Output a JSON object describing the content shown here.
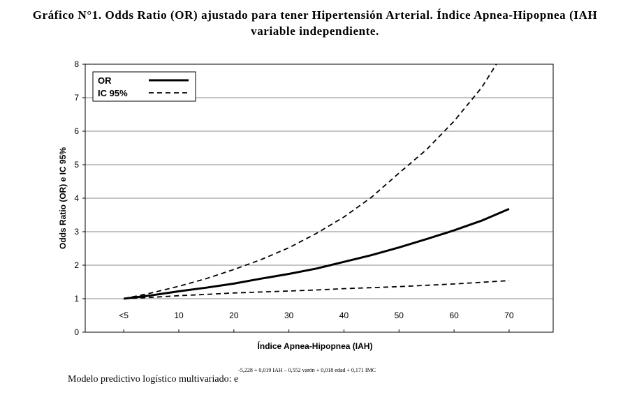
{
  "title": {
    "line1": "Gráfico N°1. Odds Ratio (OR) ajustado para tener Hipertensión Arterial.  Índice Apnea-Hipopnea (IAH",
    "line2": "variable independiente."
  },
  "footer": {
    "text": "Modelo predictivo logístico multivariado: e",
    "exponent": "-5,228 + 0,019 IAH – 0,552 varón + 0,018 edad + 0,171 IMC"
  },
  "chart_data": {
    "type": "line",
    "xlabel": "Índice Apnea-Hipopnea (IAH)",
    "ylabel": "Odds Ratio (OR) e IC 95%",
    "x_tick_labels": [
      "<5",
      "10",
      "20",
      "30",
      "40",
      "50",
      "60",
      "70"
    ],
    "x_tick_values": [
      0,
      10,
      20,
      30,
      40,
      50,
      60,
      70
    ],
    "xlim": [
      -7,
      78
    ],
    "ylim": [
      0,
      8
    ],
    "y_ticks": [
      0,
      1,
      2,
      3,
      4,
      5,
      6,
      7,
      8
    ],
    "grid": true,
    "legend_position": "top-left",
    "x": [
      0,
      5,
      10,
      15,
      20,
      25,
      30,
      35,
      40,
      45,
      50,
      55,
      60,
      65,
      70
    ],
    "series": [
      {
        "name": "OR",
        "style": "solid",
        "values": [
          1.0,
          1.1,
          1.22,
          1.33,
          1.45,
          1.6,
          1.74,
          1.9,
          2.1,
          2.3,
          2.53,
          2.78,
          3.04,
          3.33,
          3.68
        ]
      },
      {
        "name": "IC 95%",
        "style": "dashed",
        "values": [
          1.0,
          1.17,
          1.37,
          1.6,
          1.87,
          2.17,
          2.52,
          2.95,
          3.44,
          4.03,
          4.75,
          5.45,
          6.3,
          7.3,
          8.6
        ]
      },
      {
        "name": "",
        "style": "dashed",
        "values": [
          1.0,
          1.04,
          1.09,
          1.13,
          1.17,
          1.2,
          1.23,
          1.26,
          1.3,
          1.33,
          1.36,
          1.4,
          1.44,
          1.49,
          1.54
        ]
      }
    ]
  }
}
